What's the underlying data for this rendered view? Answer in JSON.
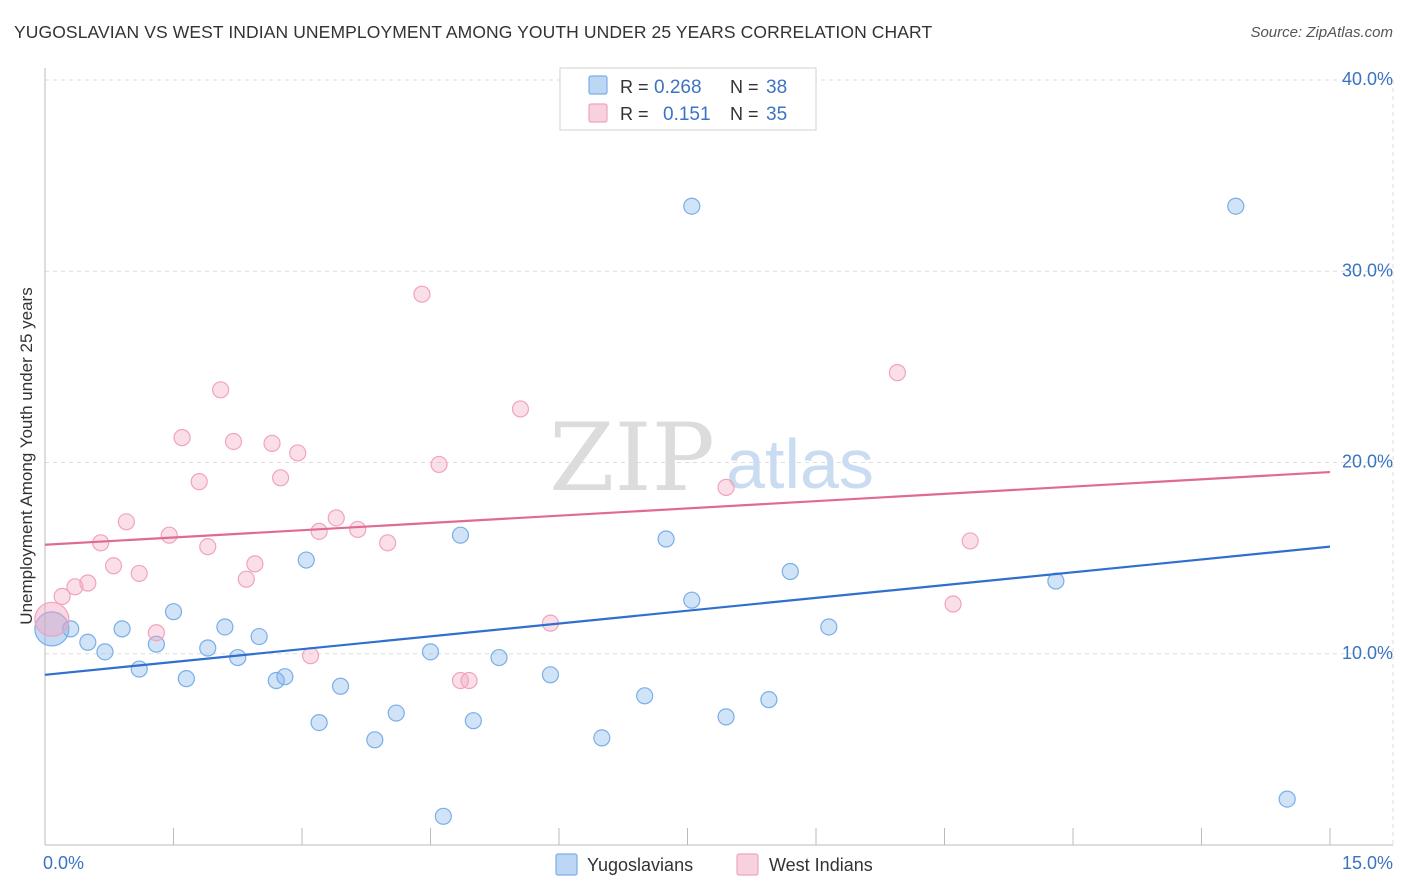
{
  "page": {
    "title": "YUGOSLAVIAN VS WEST INDIAN UNEMPLOYMENT AMONG YOUTH UNDER 25 YEARS CORRELATION CHART",
    "source": "Source: ZipAtlas.com",
    "watermark_zip": "ZIP",
    "watermark_atlas": "atlas"
  },
  "colors": {
    "yugoslavians": "#7aaee8",
    "yugoslavians_line": "#2f6fcf",
    "west_indians": "#f1a3be",
    "west_indians_line": "#e06b92",
    "axis_value": "#3b73c4",
    "grid": "#dddddd"
  },
  "chart_data": {
    "type": "scatter",
    "title": "YUGOSLAVIAN VS WEST INDIAN UNEMPLOYMENT AMONG YOUTH UNDER 25 YEARS CORRELATION CHART",
    "xlabel": "",
    "ylabel": "Unemployment Among Youth under 25 years",
    "xlim": [
      0,
      15
    ],
    "ylim": [
      0,
      40
    ],
    "x_tick_labels": [
      "0.0%",
      "15.0%"
    ],
    "y_ticks": [
      10,
      20,
      30,
      40
    ],
    "y_tick_labels": [
      "10.0%",
      "20.0%",
      "30.0%",
      "40.0%"
    ],
    "grid": true,
    "legend": {
      "placement": "top-center",
      "rows": [
        {
          "r_label": "R = ",
          "r_value": "0.268",
          "n_label": "N = ",
          "n_value": "38"
        },
        {
          "r_label": "R = ",
          "r_value": "0.151",
          "n_label": "N = ",
          "n_value": "35"
        }
      ]
    },
    "bottom_legend": [
      "Yugoslavians",
      "West Indians"
    ],
    "series": [
      {
        "name": "Yugoslavians",
        "trend": {
          "x": [
            0,
            15
          ],
          "y": [
            8.9,
            15.6
          ]
        },
        "points": [
          {
            "x": 0.08,
            "y": 11.3,
            "big": true
          },
          {
            "x": 0.3,
            "y": 11.3
          },
          {
            "x": 0.5,
            "y": 10.6
          },
          {
            "x": 0.7,
            "y": 10.1
          },
          {
            "x": 0.9,
            "y": 11.3
          },
          {
            "x": 1.1,
            "y": 9.2
          },
          {
            "x": 1.3,
            "y": 10.5
          },
          {
            "x": 1.5,
            "y": 12.2
          },
          {
            "x": 1.65,
            "y": 8.7
          },
          {
            "x": 1.9,
            "y": 10.3
          },
          {
            "x": 2.1,
            "y": 11.4
          },
          {
            "x": 2.25,
            "y": 9.8
          },
          {
            "x": 2.5,
            "y": 10.9
          },
          {
            "x": 2.7,
            "y": 8.6
          },
          {
            "x": 2.8,
            "y": 8.8
          },
          {
            "x": 3.05,
            "y": 14.9
          },
          {
            "x": 3.2,
            "y": 6.4
          },
          {
            "x": 3.45,
            "y": 8.3
          },
          {
            "x": 3.85,
            "y": 5.5
          },
          {
            "x": 4.1,
            "y": 6.9
          },
          {
            "x": 4.5,
            "y": 10.1
          },
          {
            "x": 4.65,
            "y": 1.5
          },
          {
            "x": 4.85,
            "y": 16.2
          },
          {
            "x": 5.0,
            "y": 6.5
          },
          {
            "x": 5.3,
            "y": 9.8
          },
          {
            "x": 5.9,
            "y": 8.9
          },
          {
            "x": 6.5,
            "y": 5.6
          },
          {
            "x": 7.0,
            "y": 7.8
          },
          {
            "x": 7.25,
            "y": 16.0
          },
          {
            "x": 7.55,
            "y": 12.8
          },
          {
            "x": 7.55,
            "y": 33.4
          },
          {
            "x": 7.95,
            "y": 6.7
          },
          {
            "x": 8.45,
            "y": 7.6
          },
          {
            "x": 8.7,
            "y": 14.3
          },
          {
            "x": 9.15,
            "y": 11.4
          },
          {
            "x": 11.8,
            "y": 13.8
          },
          {
            "x": 13.9,
            "y": 33.4
          },
          {
            "x": 14.5,
            "y": 2.4
          }
        ]
      },
      {
        "name": "West Indians",
        "trend": {
          "x": [
            0,
            15
          ],
          "y": [
            15.7,
            19.5
          ]
        },
        "points": [
          {
            "x": 0.08,
            "y": 11.8,
            "big": true
          },
          {
            "x": 0.2,
            "y": 13.0
          },
          {
            "x": 0.35,
            "y": 13.5
          },
          {
            "x": 0.5,
            "y": 13.7
          },
          {
            "x": 0.65,
            "y": 15.8
          },
          {
            "x": 0.8,
            "y": 14.6
          },
          {
            "x": 0.95,
            "y": 16.9
          },
          {
            "x": 1.1,
            "y": 14.2
          },
          {
            "x": 1.3,
            "y": 11.1
          },
          {
            "x": 1.45,
            "y": 16.2
          },
          {
            "x": 1.6,
            "y": 21.3
          },
          {
            "x": 1.8,
            "y": 19.0
          },
          {
            "x": 1.9,
            "y": 15.6
          },
          {
            "x": 2.05,
            "y": 23.8
          },
          {
            "x": 2.2,
            "y": 21.1
          },
          {
            "x": 2.35,
            "y": 13.9
          },
          {
            "x": 2.45,
            "y": 14.7
          },
          {
            "x": 2.65,
            "y": 21.0
          },
          {
            "x": 2.75,
            "y": 19.2
          },
          {
            "x": 2.95,
            "y": 20.5
          },
          {
            "x": 3.1,
            "y": 9.9
          },
          {
            "x": 3.2,
            "y": 16.4
          },
          {
            "x": 3.4,
            "y": 17.1
          },
          {
            "x": 3.65,
            "y": 16.5
          },
          {
            "x": 4.0,
            "y": 15.8
          },
          {
            "x": 4.4,
            "y": 28.8
          },
          {
            "x": 4.6,
            "y": 19.9
          },
          {
            "x": 4.85,
            "y": 8.6
          },
          {
            "x": 4.95,
            "y": 8.6
          },
          {
            "x": 5.55,
            "y": 22.8
          },
          {
            "x": 5.9,
            "y": 11.6
          },
          {
            "x": 7.95,
            "y": 18.7
          },
          {
            "x": 9.95,
            "y": 24.7
          },
          {
            "x": 10.6,
            "y": 12.6
          },
          {
            "x": 10.8,
            "y": 15.9
          }
        ]
      }
    ]
  }
}
